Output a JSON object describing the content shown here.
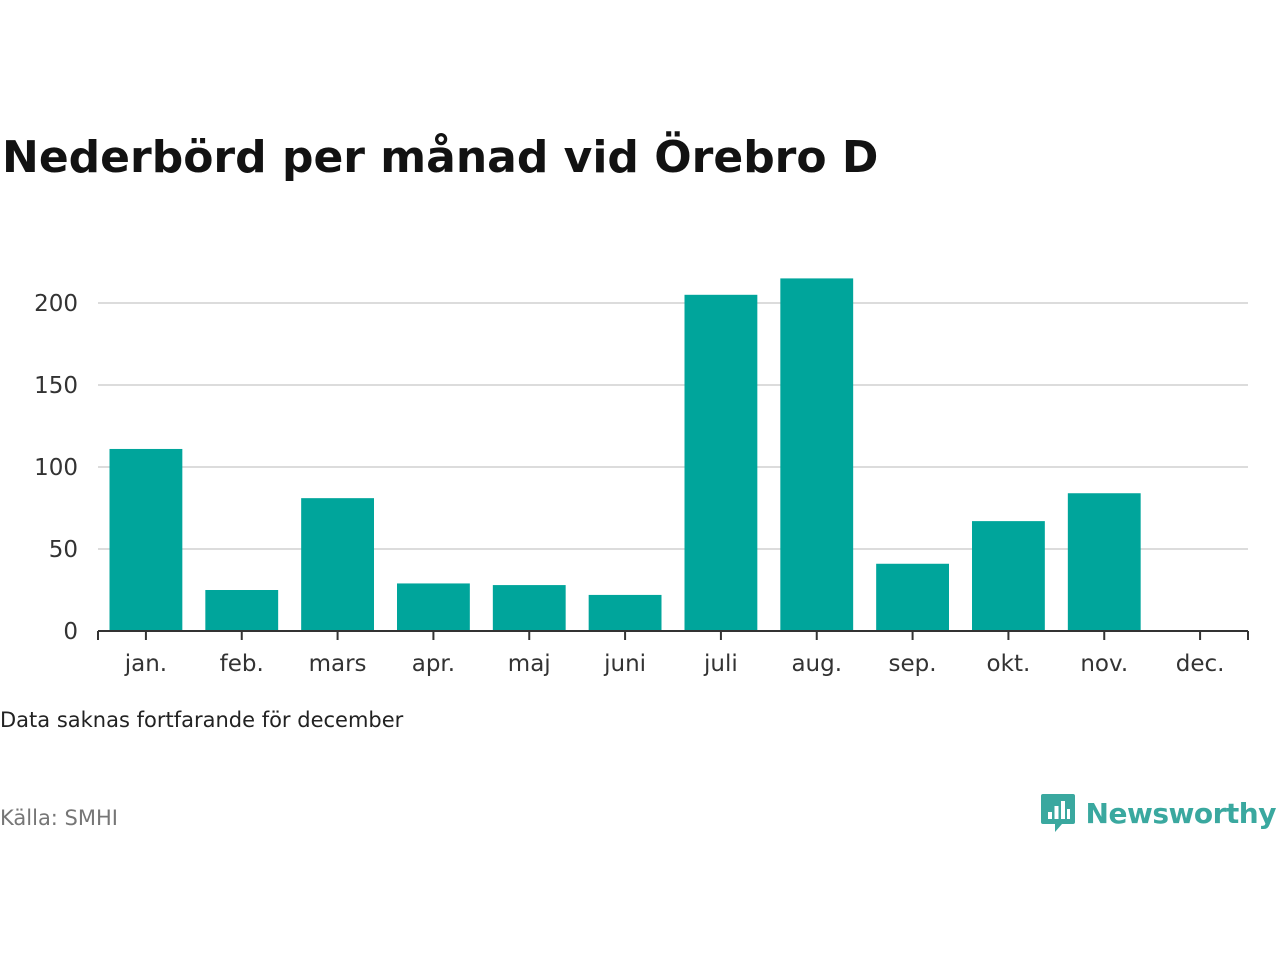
{
  "title": "Nederbörd per månad vid Örebro D",
  "note": "Data saknas fortfarande för december",
  "source": "Källa: SMHI",
  "logo_text": "Newsworthy",
  "colors": {
    "bar": "#00a59b",
    "grid": "#dcdcdc",
    "axis": "#333333",
    "logo": "#3aa89f"
  },
  "chart_data": {
    "type": "bar",
    "categories": [
      "jan.",
      "feb.",
      "mars",
      "apr.",
      "maj",
      "juni",
      "juli",
      "aug.",
      "sep.",
      "okt.",
      "nov.",
      "dec."
    ],
    "values": [
      111,
      25,
      81,
      29,
      28,
      22,
      205,
      215,
      41,
      67,
      84,
      null
    ],
    "yticks": [
      0,
      50,
      100,
      150,
      200
    ],
    "ylim": [
      0,
      220
    ],
    "grid": true,
    "legend": "none"
  }
}
